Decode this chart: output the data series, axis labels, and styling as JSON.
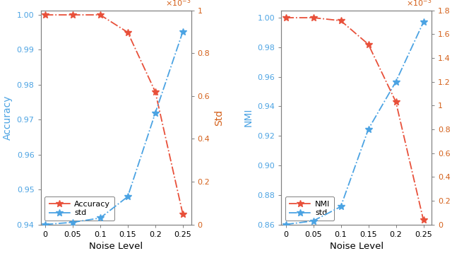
{
  "noise_levels": [
    0,
    0.05,
    0.1,
    0.15,
    0.2,
    0.25
  ],
  "accuracy": [
    1.0,
    1.0,
    1.0,
    0.995,
    0.978,
    0.943
  ],
  "acc_std": [
    0.0,
    1e-05,
    3e-05,
    0.00013,
    0.00052,
    0.0009
  ],
  "nmi": [
    1.0,
    1.0,
    0.998,
    0.982,
    0.943,
    0.863
  ],
  "nmi_std": [
    0.0,
    3e-05,
    0.00015,
    0.0008,
    0.0012,
    0.0017
  ],
  "acc_ylim": [
    0.94,
    1.0013
  ],
  "nmi_ylim": [
    0.86,
    1.005
  ],
  "acc_std_ylim": [
    0.0,
    0.001
  ],
  "nmi_std_ylim": [
    0.0,
    0.0018
  ],
  "acc_std_yticks": [
    0.0,
    0.0002,
    0.0004,
    0.0006,
    0.0008,
    0.001
  ],
  "nmi_std_yticks": [
    0.0,
    0.0002,
    0.0004,
    0.0006,
    0.0008,
    0.001,
    0.0012,
    0.0014,
    0.0016,
    0.0018
  ],
  "acc_yticks": [
    0.94,
    0.95,
    0.96,
    0.97,
    0.98,
    0.99,
    1.0
  ],
  "nmi_yticks": [
    0.86,
    0.88,
    0.9,
    0.92,
    0.94,
    0.96,
    0.98,
    1.0
  ],
  "xticks": [
    0,
    0.05,
    0.1,
    0.15,
    0.2,
    0.25
  ],
  "xlim": [
    -0.008,
    0.265
  ],
  "xlabel": "Noise Level",
  "acc_ylabel": "Accuracy",
  "nmi_ylabel": "NMI",
  "std_ylabel": "Std",
  "acc_legend_label": "Accuracy",
  "nmi_legend_label": "NMI",
  "std_legend_label": "std",
  "red_color": "#E8503A",
  "blue_color": "#4BA3E3",
  "orange_color": "#D4601A",
  "spine_color": "#808080",
  "bg_color": "#F2F2F2"
}
